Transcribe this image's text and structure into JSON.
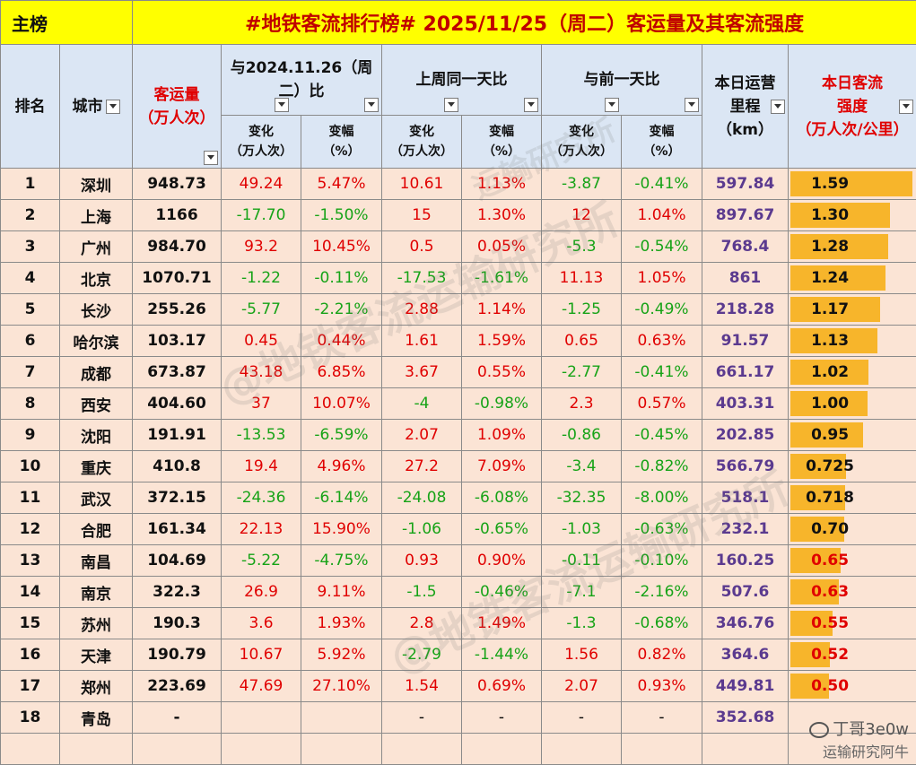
{
  "title_bar": {
    "label": "主榜",
    "title": "#地铁客流排行榜# 2025/11/25（周二）客运量及其客流强度"
  },
  "headers": {
    "rank": "排名",
    "city": "城市",
    "volume": "客运量\n（万人次）",
    "yoy": "与2024.11.26（周\n二）比",
    "last_week": "上周同一天比",
    "prev_day": "与前一天比",
    "km": "本日运营\n里程\n（km）",
    "intensity": "本日客流\n强度\n（万人次/公里）",
    "change": "变化\n（万人次）",
    "pct": "变幅\n（%）"
  },
  "rows": [
    {
      "rank": "1",
      "city": "深圳",
      "volume": "948.73",
      "yoy_chg": "49.24",
      "yoy_pct": "5.47%",
      "wk_chg": "10.61",
      "wk_pct": "1.13%",
      "day_chg": "-3.87",
      "day_pct": "-0.41%",
      "km": "597.84",
      "intensity": "1.59",
      "intensity_value": 1.59
    },
    {
      "rank": "2",
      "city": "上海",
      "volume": "1166",
      "yoy_chg": "-17.70",
      "yoy_pct": "-1.50%",
      "wk_chg": "15",
      "wk_pct": "1.30%",
      "day_chg": "12",
      "day_pct": "1.04%",
      "km": "897.67",
      "intensity": "1.30",
      "intensity_value": 1.3
    },
    {
      "rank": "3",
      "city": "广州",
      "volume": "984.70",
      "yoy_chg": "93.2",
      "yoy_pct": "10.45%",
      "wk_chg": "0.5",
      "wk_pct": "0.05%",
      "day_chg": "-5.3",
      "day_pct": "-0.54%",
      "km": "768.4",
      "intensity": "1.28",
      "intensity_value": 1.28
    },
    {
      "rank": "4",
      "city": "北京",
      "volume": "1070.71",
      "yoy_chg": "-1.22",
      "yoy_pct": "-0.11%",
      "wk_chg": "-17.53",
      "wk_pct": "-1.61%",
      "day_chg": "11.13",
      "day_pct": "1.05%",
      "km": "861",
      "intensity": "1.24",
      "intensity_value": 1.24
    },
    {
      "rank": "5",
      "city": "长沙",
      "volume": "255.26",
      "yoy_chg": "-5.77",
      "yoy_pct": "-2.21%",
      "wk_chg": "2.88",
      "wk_pct": "1.14%",
      "day_chg": "-1.25",
      "day_pct": "-0.49%",
      "km": "218.28",
      "intensity": "1.17",
      "intensity_value": 1.17
    },
    {
      "rank": "6",
      "city": "哈尔滨",
      "volume": "103.17",
      "yoy_chg": "0.45",
      "yoy_pct": "0.44%",
      "wk_chg": "1.61",
      "wk_pct": "1.59%",
      "day_chg": "0.65",
      "day_pct": "0.63%",
      "km": "91.57",
      "intensity": "1.13",
      "intensity_value": 1.13
    },
    {
      "rank": "7",
      "city": "成都",
      "volume": "673.87",
      "yoy_chg": "43.18",
      "yoy_pct": "6.85%",
      "wk_chg": "3.67",
      "wk_pct": "0.55%",
      "day_chg": "-2.77",
      "day_pct": "-0.41%",
      "km": "661.17",
      "intensity": "1.02",
      "intensity_value": 1.02
    },
    {
      "rank": "8",
      "city": "西安",
      "volume": "404.60",
      "yoy_chg": "37",
      "yoy_pct": "10.07%",
      "wk_chg": "-4",
      "wk_pct": "-0.98%",
      "day_chg": "2.3",
      "day_pct": "0.57%",
      "km": "403.31",
      "intensity": "1.00",
      "intensity_value": 1.0
    },
    {
      "rank": "9",
      "city": "沈阳",
      "volume": "191.91",
      "yoy_chg": "-13.53",
      "yoy_pct": "-6.59%",
      "wk_chg": "2.07",
      "wk_pct": "1.09%",
      "day_chg": "-0.86",
      "day_pct": "-0.45%",
      "km": "202.85",
      "intensity": "0.95",
      "intensity_value": 0.95
    },
    {
      "rank": "10",
      "city": "重庆",
      "volume": "410.8",
      "yoy_chg": "19.4",
      "yoy_pct": "4.96%",
      "wk_chg": "27.2",
      "wk_pct": "7.09%",
      "day_chg": "-3.4",
      "day_pct": "-0.82%",
      "km": "566.79",
      "intensity": "0.725",
      "intensity_value": 0.725
    },
    {
      "rank": "11",
      "city": "武汉",
      "volume": "372.15",
      "yoy_chg": "-24.36",
      "yoy_pct": "-6.14%",
      "wk_chg": "-24.08",
      "wk_pct": "-6.08%",
      "day_chg": "-32.35",
      "day_pct": "-8.00%",
      "km": "518.1",
      "intensity": "0.718",
      "intensity_value": 0.718
    },
    {
      "rank": "12",
      "city": "合肥",
      "volume": "161.34",
      "yoy_chg": "22.13",
      "yoy_pct": "15.90%",
      "wk_chg": "-1.06",
      "wk_pct": "-0.65%",
      "day_chg": "-1.03",
      "day_pct": "-0.63%",
      "km": "232.1",
      "intensity": "0.70",
      "intensity_value": 0.7
    },
    {
      "rank": "13",
      "city": "南昌",
      "volume": "104.69",
      "yoy_chg": "-5.22",
      "yoy_pct": "-4.75%",
      "wk_chg": "0.93",
      "wk_pct": "0.90%",
      "day_chg": "-0.11",
      "day_pct": "-0.10%",
      "km": "160.25",
      "intensity": "0.65",
      "intensity_value": 0.65
    },
    {
      "rank": "14",
      "city": "南京",
      "volume": "322.3",
      "yoy_chg": "26.9",
      "yoy_pct": "9.11%",
      "wk_chg": "-1.5",
      "wk_pct": "-0.46%",
      "day_chg": "-7.1",
      "day_pct": "-2.16%",
      "km": "507.6",
      "intensity": "0.63",
      "intensity_value": 0.63
    },
    {
      "rank": "15",
      "city": "苏州",
      "volume": "190.3",
      "yoy_chg": "3.6",
      "yoy_pct": "1.93%",
      "wk_chg": "2.8",
      "wk_pct": "1.49%",
      "day_chg": "-1.3",
      "day_pct": "-0.68%",
      "km": "346.76",
      "intensity": "0.55",
      "intensity_value": 0.55
    },
    {
      "rank": "16",
      "city": "天津",
      "volume": "190.79",
      "yoy_chg": "10.67",
      "yoy_pct": "5.92%",
      "wk_chg": "-2.79",
      "wk_pct": "-1.44%",
      "day_chg": "1.56",
      "day_pct": "0.82%",
      "km": "364.6",
      "intensity": "0.52",
      "intensity_value": 0.52
    },
    {
      "rank": "17",
      "city": "郑州",
      "volume": "223.69",
      "yoy_chg": "47.69",
      "yoy_pct": "27.10%",
      "wk_chg": "1.54",
      "wk_pct": "0.69%",
      "day_chg": "2.07",
      "day_pct": "0.93%",
      "km": "449.81",
      "intensity": "0.50",
      "intensity_value": 0.5
    },
    {
      "rank": "18",
      "city": "青岛",
      "volume": "-",
      "yoy_chg": "",
      "yoy_pct": "",
      "wk_chg": "-",
      "wk_pct": "-",
      "day_chg": "-",
      "day_pct": "-",
      "km": "352.68",
      "intensity": "",
      "intensity_value": 0
    }
  ],
  "watermarks": [
    "@地铁客流运输研究所",
    "@地铁客流运输研究所",
    "运输研究所"
  ],
  "signature": {
    "line1": "丁哥3e0w",
    "line2": "运输研究阿牛"
  },
  "colors": {
    "title_bg": "#ffff00",
    "header_bg": "#dbe6f4",
    "row_bg": "#fbe4d5",
    "positive": "#e00000",
    "negative": "#17a317",
    "km": "#5b3a8f",
    "bar": "#f7b52b"
  }
}
